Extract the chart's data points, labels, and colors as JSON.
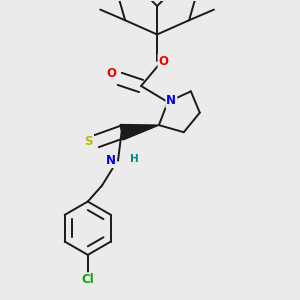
{
  "background_color": "#ebebeb",
  "atom_colors": {
    "C": "#000000",
    "N": "#0000ee",
    "O": "#ee0000",
    "S": "#bbbb00",
    "Cl": "#00aa00",
    "H": "#008888"
  },
  "bond_color": "#1a1a1a",
  "bond_width": 1.4,
  "figsize": [
    3.0,
    3.0
  ],
  "dpi": 100
}
